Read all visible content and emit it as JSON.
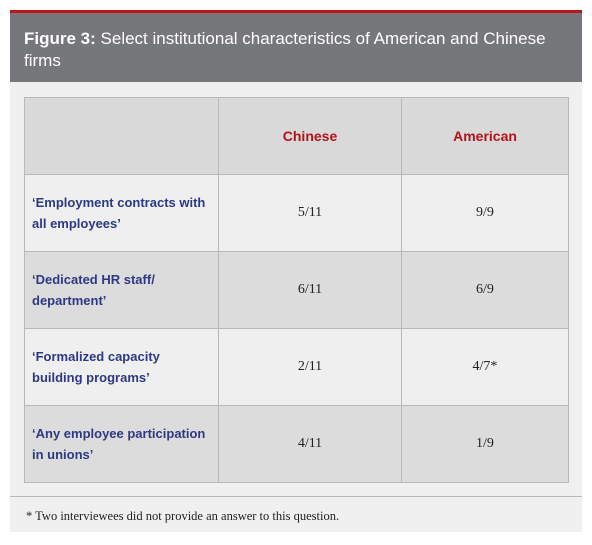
{
  "header": {
    "label": "Figure 3:",
    "title": "Select institutional characteristics of American and Chinese firms"
  },
  "table": {
    "columns": [
      "Chinese",
      "American"
    ],
    "rows": [
      {
        "label": "‘Employment contracts with all employees’",
        "values": [
          "5/11",
          "9/9"
        ]
      },
      {
        "label": "‘Dedicated HR staff/ department’",
        "values": [
          "6/11",
          "6/9"
        ]
      },
      {
        "label": "‘Formalized capacity building programs’",
        "values": [
          "2/11",
          "4/7*"
        ]
      },
      {
        "label": "‘Any employee participation in unions’",
        "values": [
          "4/11",
          "1/9"
        ]
      }
    ]
  },
  "footnote": "* Two interviewees did not provide an answer to this question."
}
